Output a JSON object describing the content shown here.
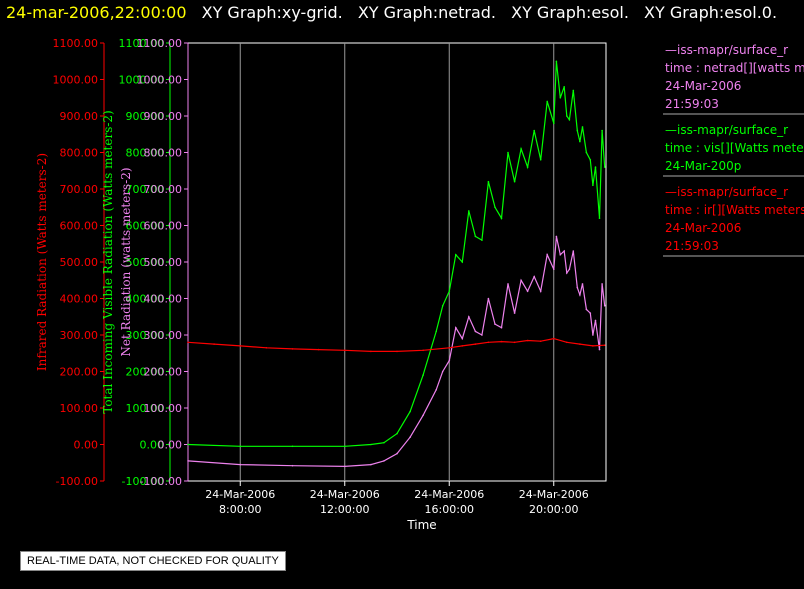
{
  "header": {
    "timestamp": "24-mar-2006,22:00:00",
    "titles": [
      "XY Graph:xy-grid.",
      "XY Graph:netrad.",
      "XY Graph:esol.",
      "XY Graph:esol.0."
    ]
  },
  "footer": {
    "note": "REAL-TIME DATA, NOT CHECKED FOR QUALITY"
  },
  "colors": {
    "infrared": "#ff0000",
    "visible": "#00ff00",
    "net": "#ee82ee",
    "background": "#000000",
    "timestamp": "#ffff00",
    "grid": "#999999"
  },
  "legend": [
    {
      "series": "net",
      "lines": [
        "—iss-mapr/surface_r",
        "time : netrad[][watts m",
        "24-Mar-2006",
        "21:59:03"
      ]
    },
    {
      "series": "visible",
      "lines": [
        "—iss-mapr/surface_r",
        "time : vis[][Watts meter",
        "24-Mar-200p"
      ]
    },
    {
      "series": "infrared",
      "lines": [
        "—iss-mapr/surface_r",
        "time : ir[][Watts meters",
        "24-Mar-2006",
        "21:59:03"
      ]
    }
  ],
  "chart_data": {
    "type": "line",
    "xlabel": "Time",
    "x_ticks": [
      {
        "hour": 8,
        "date": "24-Mar-2006",
        "time": "8:00:00"
      },
      {
        "hour": 12,
        "date": "24-Mar-2006",
        "time": "12:00:00"
      },
      {
        "hour": 16,
        "date": "24-Mar-2006",
        "time": "16:00:00"
      },
      {
        "hour": 20,
        "date": "24-Mar-2006",
        "time": "20:00:00"
      }
    ],
    "xlim": [
      6.0,
      22.0
    ],
    "ylim": [
      -100,
      1100
    ],
    "y_ticks": [
      "-100.00",
      "0.00",
      "100.00",
      "200.00",
      "300.00",
      "400.00",
      "500.00",
      "600.00",
      "700.00",
      "800.00",
      "900.00",
      "1000.00",
      "1100.00"
    ],
    "axes": [
      {
        "series": "infrared",
        "label": "Infrared Radiation (Watts meters-2)"
      },
      {
        "series": "visible",
        "label": "Total Incoming Visible Radiation (Watts meters-2)"
      },
      {
        "series": "net",
        "label": "Net Radiation (watts meters-2)"
      }
    ],
    "series": [
      {
        "key": "visible",
        "name": "vis[][Watts meter",
        "x": [
          6.0,
          8.0,
          10.0,
          12.0,
          13.0,
          13.5,
          14.0,
          14.5,
          15.0,
          15.5,
          15.75,
          16.0,
          16.25,
          16.5,
          16.75,
          17.0,
          17.25,
          17.5,
          17.75,
          18.0,
          18.25,
          18.5,
          18.75,
          19.0,
          19.25,
          19.5,
          19.75,
          20.0,
          20.1,
          20.25,
          20.4,
          20.5,
          20.6,
          20.75,
          20.9,
          21.0,
          21.1,
          21.25,
          21.4,
          21.5,
          21.6,
          21.75,
          21.85,
          21.95
        ],
        "y": [
          0,
          -5,
          -5,
          -5,
          0,
          5,
          30,
          90,
          190,
          310,
          380,
          420,
          520,
          500,
          640,
          570,
          560,
          720,
          650,
          620,
          800,
          720,
          810,
          760,
          860,
          780,
          940,
          880,
          1050,
          950,
          980,
          900,
          890,
          970,
          860,
          830,
          870,
          800,
          780,
          710,
          760,
          620,
          860,
          760
        ]
      },
      {
        "key": "net",
        "name": "netrad[][watts m",
        "x": [
          6.0,
          8.0,
          10.0,
          12.0,
          13.0,
          13.5,
          14.0,
          14.5,
          15.0,
          15.5,
          15.75,
          16.0,
          16.25,
          16.5,
          16.75,
          17.0,
          17.25,
          17.5,
          17.75,
          18.0,
          18.25,
          18.5,
          18.75,
          19.0,
          19.25,
          19.5,
          19.75,
          20.0,
          20.1,
          20.25,
          20.4,
          20.5,
          20.6,
          20.75,
          20.9,
          21.0,
          21.1,
          21.25,
          21.4,
          21.5,
          21.6,
          21.75,
          21.85,
          21.95
        ],
        "y": [
          -45,
          -55,
          -58,
          -60,
          -55,
          -45,
          -25,
          20,
          80,
          150,
          200,
          230,
          320,
          290,
          350,
          310,
          300,
          400,
          330,
          320,
          440,
          360,
          450,
          420,
          460,
          420,
          520,
          480,
          570,
          520,
          530,
          470,
          480,
          530,
          430,
          410,
          440,
          370,
          360,
          300,
          340,
          260,
          440,
          380
        ]
      },
      {
        "key": "infrared",
        "name": "ir[][Watts meters",
        "x": [
          6.0,
          7.0,
          8.0,
          9.0,
          10.0,
          11.0,
          12.0,
          13.0,
          14.0,
          15.0,
          16.0,
          16.5,
          17.0,
          17.5,
          18.0,
          18.5,
          19.0,
          19.5,
          20.0,
          20.5,
          21.0,
          21.5,
          21.95
        ],
        "y": [
          280,
          275,
          270,
          265,
          262,
          260,
          258,
          255,
          255,
          258,
          265,
          270,
          275,
          280,
          282,
          280,
          285,
          283,
          290,
          280,
          275,
          270,
          272
        ]
      }
    ]
  }
}
